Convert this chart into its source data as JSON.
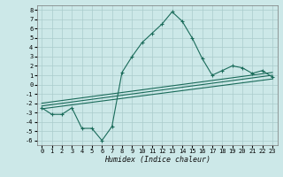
{
  "title": "",
  "xlabel": "Humidex (Indice chaleur)",
  "bg_color": "#cce8e8",
  "grid_color": "#aacccc",
  "line_color": "#1a6b5a",
  "xlim": [
    -0.5,
    23.5
  ],
  "ylim": [
    -6.5,
    8.5
  ],
  "xticks": [
    0,
    1,
    2,
    3,
    4,
    5,
    6,
    7,
    8,
    9,
    10,
    11,
    12,
    13,
    14,
    15,
    16,
    17,
    18,
    19,
    20,
    21,
    22,
    23
  ],
  "yticks": [
    8,
    7,
    6,
    5,
    4,
    3,
    2,
    1,
    0,
    -1,
    -2,
    -3,
    -4,
    -5,
    -6
  ],
  "series_main": {
    "x": [
      0,
      1,
      2,
      3,
      4,
      5,
      6,
      7,
      8,
      9,
      10,
      11,
      12,
      13,
      14,
      15,
      16,
      17,
      18,
      19,
      20,
      21,
      22,
      23
    ],
    "y": [
      -2.5,
      -3.2,
      -3.2,
      -2.5,
      -4.7,
      -4.7,
      -6.0,
      -4.5,
      1.3,
      3.0,
      4.5,
      5.5,
      6.5,
      7.8,
      6.8,
      5.0,
      2.8,
      1.0,
      1.5,
      2.0,
      1.8,
      1.2,
      1.5,
      0.8
    ]
  },
  "trend_lines": [
    {
      "x": [
        0,
        23
      ],
      "y": [
        -2.6,
        0.6
      ]
    },
    {
      "x": [
        0,
        23
      ],
      "y": [
        -2.3,
        1.0
      ]
    },
    {
      "x": [
        0,
        23
      ],
      "y": [
        -2.0,
        1.3
      ]
    }
  ],
  "xlabel_fontsize": 6,
  "tick_fontsize": 5,
  "linewidth": 0.8,
  "marker_size": 2.5
}
